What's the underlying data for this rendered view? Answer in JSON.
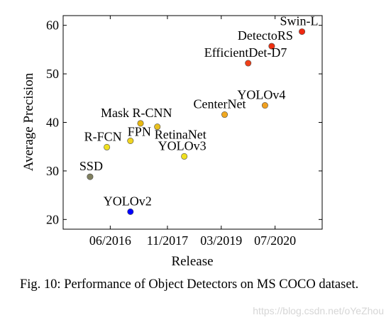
{
  "chart_data": {
    "type": "scatter",
    "title": "",
    "xlabel": "Release",
    "ylabel": "Average Precision",
    "ylim": [
      18,
      62
    ],
    "yticks": [
      20,
      30,
      40,
      50,
      60
    ],
    "xlim": [
      "2015-04",
      "2021-09"
    ],
    "xticks": [
      {
        "value": "2016-06",
        "label": "06/2016"
      },
      {
        "value": "2017-11",
        "label": "11/2017"
      },
      {
        "value": "2019-03",
        "label": "03/2019"
      },
      {
        "value": "2020-07",
        "label": "07/2020"
      }
    ],
    "grid": false,
    "legend": "none",
    "points": [
      {
        "label": "SSD",
        "x": "2015-12",
        "y": 28.8,
        "color": "#808060"
      },
      {
        "label": "R-FCN",
        "x": "2016-05",
        "y": 34.9,
        "color": "#f0e020"
      },
      {
        "label": "YOLOv2",
        "x": "2016-12",
        "y": 21.6,
        "color": "#0000ff"
      },
      {
        "label": "FPN",
        "x": "2016-12",
        "y": 36.2,
        "color": "#f0d420"
      },
      {
        "label": "Mask R-CNN",
        "x": "2017-03",
        "y": 39.8,
        "color": "#e8b810"
      },
      {
        "label": "RetinaNet",
        "x": "2017-08",
        "y": 39.1,
        "color": "#e8c020"
      },
      {
        "label": "YOLOv3",
        "x": "2018-04",
        "y": 33.0,
        "color": "#f0e020"
      },
      {
        "label": "CenterNet",
        "x": "2019-04",
        "y": 41.6,
        "color": "#f0a820"
      },
      {
        "label": "EfficientDet-D7",
        "x": "2019-11",
        "y": 52.2,
        "color": "#f04018"
      },
      {
        "label": "YOLOv4",
        "x": "2020-04",
        "y": 43.5,
        "color": "#f0a020"
      },
      {
        "label": "DetectoRS",
        "x": "2020-06",
        "y": 55.7,
        "color": "#f03010"
      },
      {
        "label": "Swin-L",
        "x": "2021-03",
        "y": 58.7,
        "color": "#f02810"
      }
    ]
  },
  "caption": "Fig. 10: Performance of Object Detectors on MS COCO dataset.",
  "watermark": "https://blog.csdn.net/oYeZhou"
}
